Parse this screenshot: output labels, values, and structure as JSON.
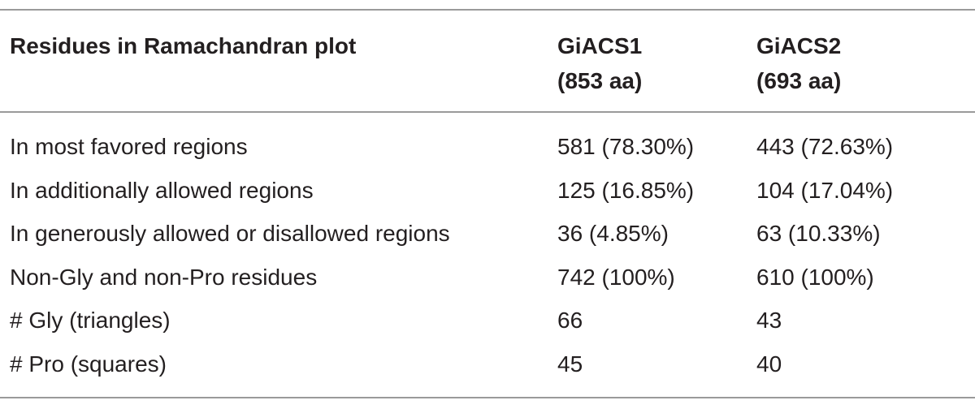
{
  "table": {
    "columns": [
      {
        "name": "Residues in Ramachandran plot"
      },
      {
        "name": "GiACS1",
        "sub": "(853 aa)"
      },
      {
        "name": "GiACS2",
        "sub": "(693 aa)"
      }
    ],
    "rows": [
      [
        "In most favored regions",
        "581 (78.30%)",
        "443 (72.63%)"
      ],
      [
        "In additionally allowed regions",
        "125 (16.85%)",
        "104 (17.04%)"
      ],
      [
        "In generously allowed or disallowed regions",
        "36 (4.85%)",
        "63 (10.33%)"
      ],
      [
        "Non-Gly and non-Pro residues",
        "742 (100%)",
        "610 (100%)"
      ],
      [
        "# Gly (triangles)",
        "66",
        "43"
      ],
      [
        "# Pro (squares)",
        "45",
        "40"
      ]
    ]
  }
}
